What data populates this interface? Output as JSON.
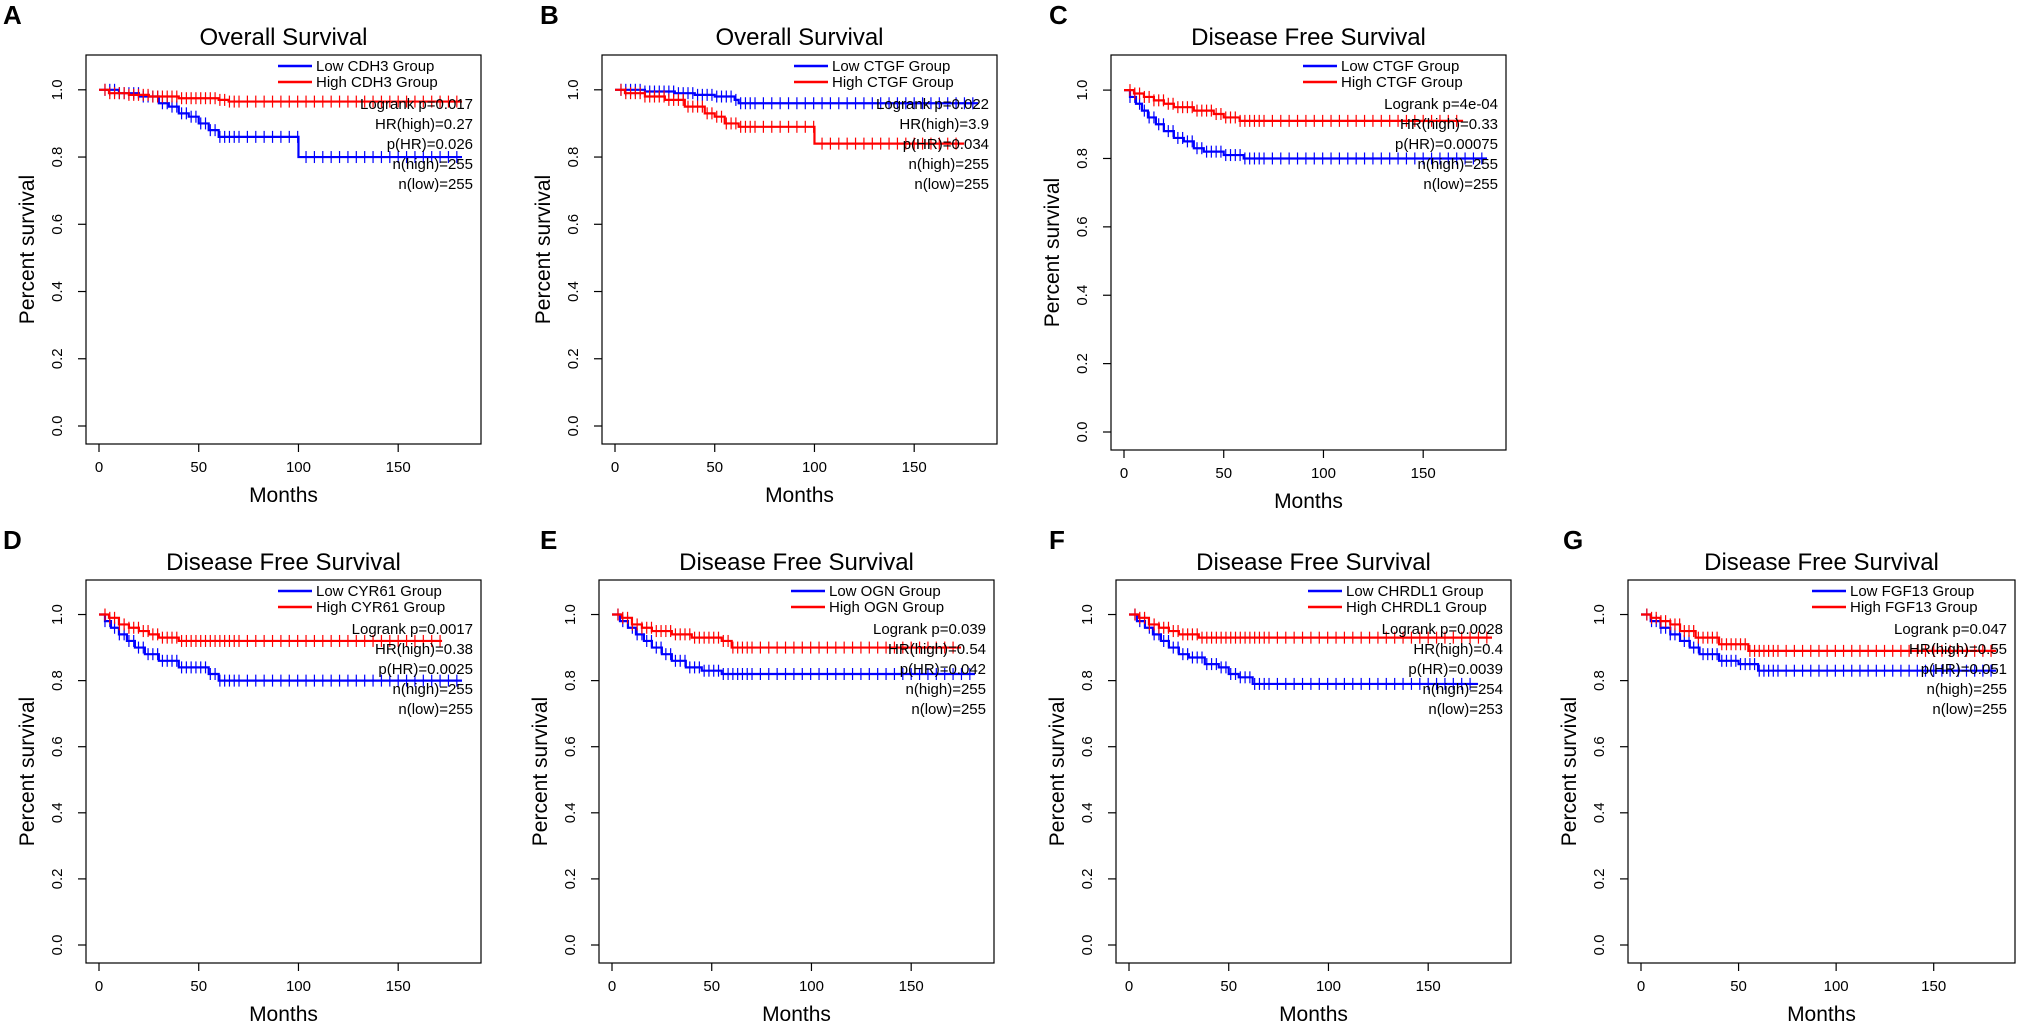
{
  "figure": {
    "background": "#ffffff",
    "colors": {
      "low": "#0000ff",
      "high": "#ff0000",
      "axis": "#000000"
    }
  },
  "chart_data": [
    {
      "panel": "A",
      "type": "line",
      "title": "Overall Survival",
      "xlabel": "Months",
      "ylabel": "Percent survival",
      "xlim": [
        0,
        185
      ],
      "ylim": [
        0,
        1.05
      ],
      "xticks": [
        "0",
        "50",
        "100",
        "150"
      ],
      "yticks": [
        "0.0",
        "0.2",
        "0.4",
        "0.6",
        "0.8",
        "1.0"
      ],
      "legend": [
        "Low CDH3 Group",
        "High CDH3 Group"
      ],
      "stats": [
        "Logrank p=0.017",
        "HR(high)=0.27",
        "p(HR)=0.026",
        "n(high)=255",
        "n(low)=255"
      ],
      "series": [
        {
          "name": "Low CDH3 Group",
          "color": "#0000ff",
          "end": 182,
          "steps": [
            [
              0,
              1.0
            ],
            [
              10,
              0.99
            ],
            [
              20,
              0.98
            ],
            [
              30,
              0.96
            ],
            [
              35,
              0.95
            ],
            [
              40,
              0.93
            ],
            [
              45,
              0.92
            ],
            [
              50,
              0.9
            ],
            [
              55,
              0.88
            ],
            [
              60,
              0.86
            ],
            [
              100,
              0.8
            ]
          ]
        },
        {
          "name": "High CDH3 Group",
          "color": "#ff0000",
          "end": 182,
          "steps": [
            [
              0,
              1.0
            ],
            [
              5,
              0.99
            ],
            [
              15,
              0.985
            ],
            [
              25,
              0.98
            ],
            [
              40,
              0.975
            ],
            [
              60,
              0.97
            ],
            [
              65,
              0.965
            ]
          ]
        }
      ]
    },
    {
      "panel": "B",
      "type": "line",
      "title": "Overall Survival",
      "xlabel": "Months",
      "ylabel": "Percent survival",
      "xlim": [
        0,
        185
      ],
      "ylim": [
        0,
        1.05
      ],
      "xticks": [
        "0",
        "50",
        "100",
        "150"
      ],
      "yticks": [
        "0.0",
        "0.2",
        "0.4",
        "0.6",
        "0.8",
        "1.0"
      ],
      "legend": [
        "Low CTGF Group",
        "High CTGF Group"
      ],
      "stats": [
        "Logrank p=0.022",
        "HR(high)=3.9",
        "p(HR)=0.034",
        "n(high)=255",
        "n(low)=255"
      ],
      "series": [
        {
          "name": "Low CTGF Group",
          "color": "#0000ff",
          "end": 182,
          "steps": [
            [
              0,
              1.0
            ],
            [
              15,
              0.995
            ],
            [
              30,
              0.99
            ],
            [
              40,
              0.985
            ],
            [
              50,
              0.98
            ],
            [
              60,
              0.97
            ],
            [
              62,
              0.96
            ]
          ]
        },
        {
          "name": "High CTGF Group",
          "color": "#ff0000",
          "end": 175,
          "steps": [
            [
              0,
              1.0
            ],
            [
              5,
              0.99
            ],
            [
              15,
              0.98
            ],
            [
              25,
              0.97
            ],
            [
              35,
              0.95
            ],
            [
              45,
              0.93
            ],
            [
              50,
              0.92
            ],
            [
              55,
              0.9
            ],
            [
              62,
              0.89
            ],
            [
              100,
              0.84
            ]
          ]
        }
      ]
    },
    {
      "panel": "C",
      "type": "line",
      "title": "Disease Free Survival",
      "xlabel": "Months",
      "ylabel": "Percent survival",
      "xlim": [
        0,
        185
      ],
      "ylim": [
        0,
        1.05
      ],
      "xticks": [
        "0",
        "50",
        "100",
        "150"
      ],
      "yticks": [
        "0.0",
        "0.2",
        "0.4",
        "0.6",
        "0.8",
        "1.0"
      ],
      "legend": [
        "Low CTGF Group",
        "High CTGF Group"
      ],
      "stats": [
        "Logrank p=4e-04",
        "HR(high)=0.33",
        "p(HR)=0.00075",
        "n(high)=255",
        "n(low)=255"
      ],
      "series": [
        {
          "name": "Low CTGF Group",
          "color": "#0000ff",
          "end": 182,
          "steps": [
            [
              0,
              1.0
            ],
            [
              3,
              0.98
            ],
            [
              6,
              0.96
            ],
            [
              9,
              0.94
            ],
            [
              12,
              0.92
            ],
            [
              16,
              0.9
            ],
            [
              20,
              0.88
            ],
            [
              25,
              0.86
            ],
            [
              30,
              0.85
            ],
            [
              35,
              0.83
            ],
            [
              40,
              0.82
            ],
            [
              50,
              0.81
            ],
            [
              60,
              0.8
            ]
          ]
        },
        {
          "name": "High CTGF Group",
          "color": "#ff0000",
          "end": 170,
          "steps": [
            [
              0,
              1.0
            ],
            [
              5,
              0.99
            ],
            [
              10,
              0.98
            ],
            [
              15,
              0.97
            ],
            [
              20,
              0.96
            ],
            [
              25,
              0.95
            ],
            [
              35,
              0.94
            ],
            [
              45,
              0.93
            ],
            [
              50,
              0.92
            ],
            [
              58,
              0.91
            ]
          ]
        }
      ]
    },
    {
      "panel": "D",
      "type": "line",
      "title": "Disease Free Survival",
      "xlabel": "Months",
      "ylabel": "Percent survival",
      "xlim": [
        0,
        185
      ],
      "ylim": [
        0,
        1.05
      ],
      "xticks": [
        "0",
        "50",
        "100",
        "150"
      ],
      "yticks": [
        "0.0",
        "0.2",
        "0.4",
        "0.6",
        "0.8",
        "1.0"
      ],
      "legend": [
        "Low CYR61 Group",
        "High CYR61 Group"
      ],
      "stats": [
        "Logrank p=0.0017",
        "HR(high)=0.38",
        "p(HR)=0.0025",
        "n(high)=255",
        "n(low)=255"
      ],
      "series": [
        {
          "name": "Low CYR61 Group",
          "color": "#0000ff",
          "end": 182,
          "steps": [
            [
              0,
              1.0
            ],
            [
              3,
              0.98
            ],
            [
              6,
              0.96
            ],
            [
              10,
              0.94
            ],
            [
              14,
              0.92
            ],
            [
              18,
              0.9
            ],
            [
              23,
              0.88
            ],
            [
              30,
              0.86
            ],
            [
              40,
              0.84
            ],
            [
              55,
              0.82
            ],
            [
              60,
              0.8
            ]
          ]
        },
        {
          "name": "High CYR61 Group",
          "color": "#ff0000",
          "end": 172,
          "steps": [
            [
              0,
              1.0
            ],
            [
              5,
              0.99
            ],
            [
              10,
              0.97
            ],
            [
              15,
              0.96
            ],
            [
              20,
              0.95
            ],
            [
              25,
              0.94
            ],
            [
              30,
              0.93
            ],
            [
              40,
              0.92
            ]
          ]
        }
      ]
    },
    {
      "panel": "E",
      "type": "line",
      "title": "Disease Free Survival",
      "xlabel": "Months",
      "ylabel": "Percent survival",
      "xlim": [
        0,
        185
      ],
      "ylim": [
        0,
        1.05
      ],
      "xticks": [
        "0",
        "50",
        "100",
        "150"
      ],
      "yticks": [
        "0.0",
        "0.2",
        "0.4",
        "0.6",
        "0.8",
        "1.0"
      ],
      "legend": [
        "Low OGN Group",
        "High OGN Group"
      ],
      "stats": [
        "Logrank p=0.039",
        "HR(high)=0.54",
        "p(HR)=0.042",
        "n(high)=255",
        "n(low)=255"
      ],
      "series": [
        {
          "name": "Low OGN Group",
          "color": "#0000ff",
          "end": 182,
          "steps": [
            [
              0,
              1.0
            ],
            [
              4,
              0.98
            ],
            [
              8,
              0.96
            ],
            [
              12,
              0.94
            ],
            [
              16,
              0.92
            ],
            [
              20,
              0.9
            ],
            [
              25,
              0.88
            ],
            [
              30,
              0.86
            ],
            [
              37,
              0.84
            ],
            [
              45,
              0.83
            ],
            [
              55,
              0.82
            ]
          ]
        },
        {
          "name": "High OGN Group",
          "color": "#ff0000",
          "end": 175,
          "steps": [
            [
              0,
              1.0
            ],
            [
              5,
              0.99
            ],
            [
              10,
              0.97
            ],
            [
              15,
              0.96
            ],
            [
              20,
              0.95
            ],
            [
              30,
              0.94
            ],
            [
              40,
              0.93
            ],
            [
              55,
              0.92
            ],
            [
              60,
              0.9
            ]
          ]
        }
      ]
    },
    {
      "panel": "F",
      "type": "line",
      "title": "Disease Free Survival",
      "xlabel": "Months",
      "ylabel": "Percent survival",
      "xlim": [
        0,
        185
      ],
      "ylim": [
        0,
        1.05
      ],
      "xticks": [
        "0",
        "50",
        "100",
        "150"
      ],
      "yticks": [
        "0.0",
        "0.2",
        "0.4",
        "0.6",
        "0.8",
        "1.0"
      ],
      "legend": [
        "Low CHRDL1 Group",
        "High CHRDL1 Group"
      ],
      "stats": [
        "Logrank p=0.0028",
        "HR(high)=0.4",
        "p(HR)=0.0039",
        "n(high)=254",
        "n(low)=253"
      ],
      "series": [
        {
          "name": "Low CHRDL1 Group",
          "color": "#0000ff",
          "end": 175,
          "steps": [
            [
              0,
              1.0
            ],
            [
              4,
              0.98
            ],
            [
              8,
              0.96
            ],
            [
              12,
              0.94
            ],
            [
              16,
              0.92
            ],
            [
              20,
              0.9
            ],
            [
              25,
              0.88
            ],
            [
              30,
              0.87
            ],
            [
              38,
              0.85
            ],
            [
              45,
              0.84
            ],
            [
              50,
              0.82
            ],
            [
              55,
              0.81
            ],
            [
              62,
              0.79
            ]
          ]
        },
        {
          "name": "High CHRDL1 Group",
          "color": "#ff0000",
          "end": 182,
          "steps": [
            [
              0,
              1.0
            ],
            [
              5,
              0.99
            ],
            [
              10,
              0.97
            ],
            [
              15,
              0.96
            ],
            [
              20,
              0.95
            ],
            [
              25,
              0.94
            ],
            [
              35,
              0.93
            ]
          ]
        }
      ]
    },
    {
      "panel": "G",
      "type": "line",
      "title": "Disease Free Survival",
      "xlabel": "Months",
      "ylabel": "Percent survival",
      "xlim": [
        0,
        185
      ],
      "ylim": [
        0,
        1.05
      ],
      "xticks": [
        "0",
        "50",
        "100",
        "150"
      ],
      "yticks": [
        "0.0",
        "0.2",
        "0.4",
        "0.6",
        "0.8",
        "1.0"
      ],
      "legend": [
        "Low FGF13 Group",
        "High FGF13 Group"
      ],
      "stats": [
        "Logrank p=0.047",
        "HR(high)=0.55",
        "p(HR)=0.051",
        "n(high)=255",
        "n(low)=255"
      ],
      "series": [
        {
          "name": "Low FGF13 Group",
          "color": "#0000ff",
          "end": 182,
          "steps": [
            [
              0,
              1.0
            ],
            [
              5,
              0.98
            ],
            [
              10,
              0.96
            ],
            [
              15,
              0.94
            ],
            [
              20,
              0.92
            ],
            [
              25,
              0.9
            ],
            [
              30,
              0.88
            ],
            [
              40,
              0.86
            ],
            [
              50,
              0.85
            ],
            [
              60,
              0.83
            ]
          ]
        },
        {
          "name": "High FGF13 Group",
          "color": "#ff0000",
          "end": 182,
          "steps": [
            [
              0,
              1.0
            ],
            [
              5,
              0.99
            ],
            [
              10,
              0.98
            ],
            [
              15,
              0.97
            ],
            [
              20,
              0.95
            ],
            [
              28,
              0.93
            ],
            [
              40,
              0.91
            ],
            [
              55,
              0.89
            ]
          ]
        }
      ]
    }
  ]
}
